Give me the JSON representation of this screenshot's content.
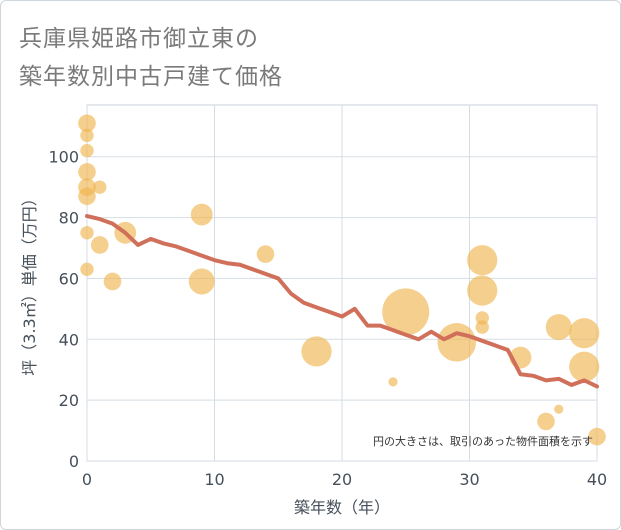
{
  "title_line1": "兵庫県姫路市御立東の",
  "title_line2": "築年数別中古戸建て価格",
  "chart_data": {
    "type": "scatter",
    "title": "兵庫県姫路市御立東の築年数別中古戸建て価格",
    "xlabel": "築年数（年）",
    "ylabel": "坪（3.3㎡）単価（万円）",
    "xlim": [
      0,
      40
    ],
    "ylim": [
      0,
      117
    ],
    "xticks": [
      0,
      10,
      20,
      30,
      40
    ],
    "yticks": [
      0,
      20,
      40,
      60,
      80,
      100
    ],
    "grid": true,
    "note": "円の大きさは、取引のあった物件面積を示す",
    "colors": {
      "bubble": "#f0b550",
      "trend": "#d0705a",
      "grid": "#d5dde4"
    },
    "bubbles": [
      {
        "x": 0,
        "y": 111,
        "size": 3
      },
      {
        "x": 0,
        "y": 107,
        "size": 2
      },
      {
        "x": 0,
        "y": 102,
        "size": 2
      },
      {
        "x": 0,
        "y": 95,
        "size": 3
      },
      {
        "x": 0,
        "y": 90,
        "size": 3
      },
      {
        "x": 0,
        "y": 87,
        "size": 3
      },
      {
        "x": 0,
        "y": 75,
        "size": 2
      },
      {
        "x": 0,
        "y": 63,
        "size": 2
      },
      {
        "x": 1,
        "y": 90,
        "size": 2
      },
      {
        "x": 1,
        "y": 71,
        "size": 3
      },
      {
        "x": 2,
        "y": 59,
        "size": 3
      },
      {
        "x": 3,
        "y": 75,
        "size": 4
      },
      {
        "x": 9,
        "y": 81,
        "size": 4
      },
      {
        "x": 9,
        "y": 59,
        "size": 5
      },
      {
        "x": 14,
        "y": 68,
        "size": 3
      },
      {
        "x": 18,
        "y": 36,
        "size": 6
      },
      {
        "x": 24,
        "y": 26,
        "size": 1
      },
      {
        "x": 25,
        "y": 49,
        "size": 10
      },
      {
        "x": 29,
        "y": 39,
        "size": 8
      },
      {
        "x": 31,
        "y": 66,
        "size": 6
      },
      {
        "x": 31,
        "y": 56,
        "size": 6
      },
      {
        "x": 31,
        "y": 47,
        "size": 2
      },
      {
        "x": 31,
        "y": 44,
        "size": 2
      },
      {
        "x": 34,
        "y": 34,
        "size": 4
      },
      {
        "x": 36,
        "y": 13,
        "size": 3
      },
      {
        "x": 37,
        "y": 17,
        "size": 1
      },
      {
        "x": 37,
        "y": 44,
        "size": 5
      },
      {
        "x": 39,
        "y": 42,
        "size": 6
      },
      {
        "x": 39,
        "y": 31,
        "size": 6
      },
      {
        "x": 40,
        "y": 8,
        "size": 3
      }
    ],
    "series": [
      {
        "name": "trend",
        "x": [
          0,
          1,
          2,
          3,
          4,
          5,
          6,
          7,
          8,
          9,
          10,
          11,
          12,
          13,
          14,
          15,
          16,
          17,
          18,
          19,
          20,
          21,
          22,
          23,
          24,
          25,
          26,
          27,
          28,
          29,
          30,
          31,
          32,
          33,
          34,
          35,
          36,
          37,
          38,
          39,
          40
        ],
        "values": [
          80.5,
          79.5,
          78,
          75,
          71,
          73,
          71.5,
          70.5,
          69,
          67.5,
          66,
          65,
          64.5,
          63,
          61.5,
          60,
          55,
          52,
          50.5,
          49,
          47.5,
          50,
          44.5,
          44.5,
          43,
          41.5,
          40,
          42.5,
          40,
          42,
          41,
          39.5,
          38,
          36.5,
          28.5,
          28,
          26.5,
          27,
          25,
          26.5,
          24.5
        ]
      }
    ]
  }
}
